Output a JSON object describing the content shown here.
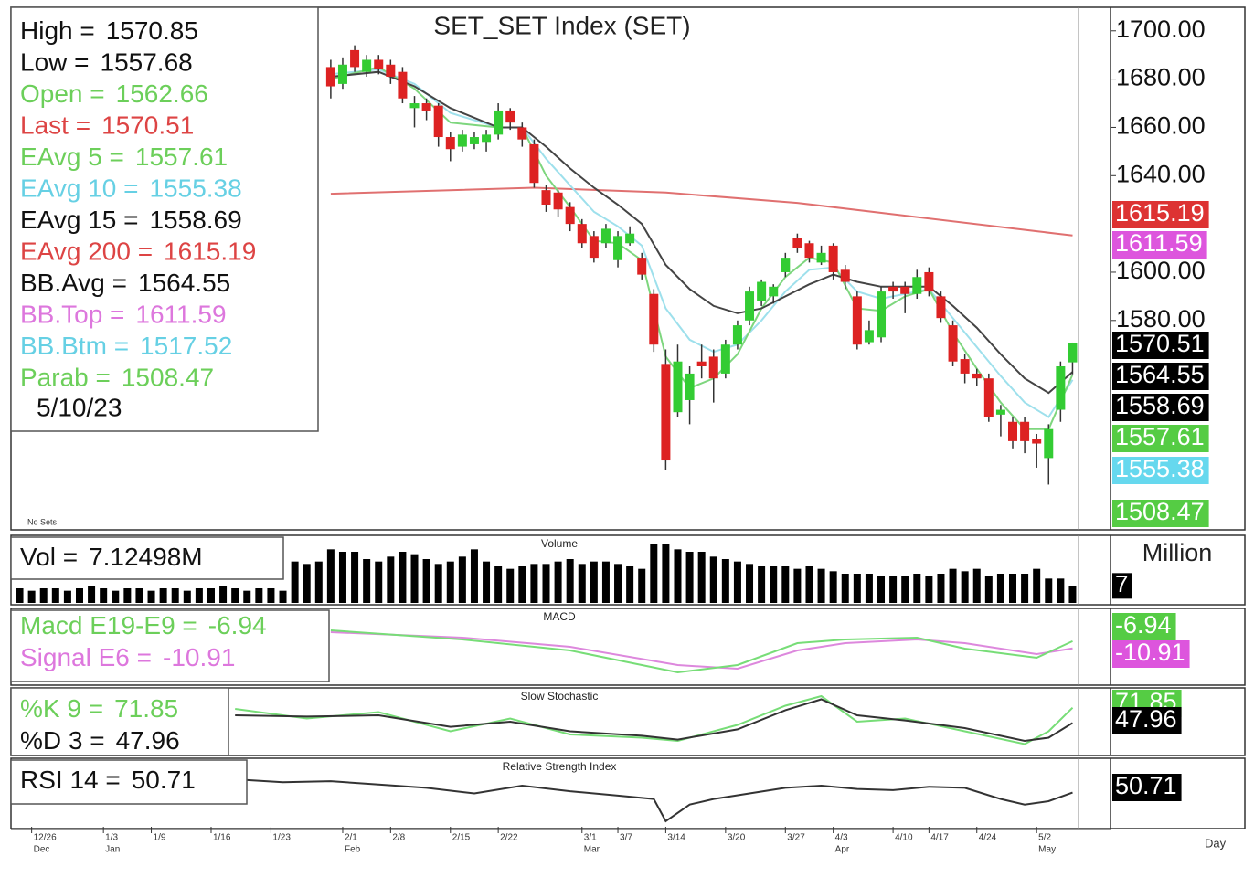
{
  "chart_data": [
    {
      "type": "candlestick",
      "title": "SET_SET Index (SET)",
      "note": "No Sets",
      "date": "5/10/23",
      "x_label": "Day",
      "up_color": "#33cc33",
      "down_color": "#dd2222",
      "xlim": [
        -0.5,
        88.5
      ],
      "xticks": [
        {
          "value": 1,
          "label": "12/26"
        },
        {
          "value": 7,
          "label": "1/3"
        },
        {
          "value": 11,
          "label": "1/9"
        },
        {
          "value": 16,
          "label": "1/16"
        },
        {
          "value": 21,
          "label": "1/23"
        },
        {
          "value": 27,
          "label": "2/1"
        },
        {
          "value": 31,
          "label": "2/8"
        },
        {
          "value": 36,
          "label": "2/15"
        },
        {
          "value": 40,
          "label": "2/22"
        },
        {
          "value": 47,
          "label": "3/1"
        },
        {
          "value": 50,
          "label": "3/7"
        },
        {
          "value": 54,
          "label": "3/14"
        },
        {
          "value": 59,
          "label": "3/20"
        },
        {
          "value": 64,
          "label": "3/27"
        },
        {
          "value": 68,
          "label": "4/3"
        },
        {
          "value": 73,
          "label": "4/10"
        },
        {
          "value": 76,
          "label": "4/17"
        },
        {
          "value": 80,
          "label": "4/24"
        },
        {
          "value": 85,
          "label": "5/2"
        }
      ],
      "month_ticks": [
        {
          "value": 1,
          "label": "Dec"
        },
        {
          "value": 7,
          "label": "Jan"
        },
        {
          "value": 27,
          "label": "Feb"
        },
        {
          "value": 47,
          "label": "Mar"
        },
        {
          "value": 68,
          "label": "Apr"
        },
        {
          "value": 85,
          "label": "May"
        }
      ],
      "ylim": [
        1494,
        1709
      ],
      "yticks": [
        {
          "value": 1580,
          "label": "1580.00"
        },
        {
          "value": 1600,
          "label": "1600.00"
        },
        {
          "value": 1640,
          "label": "1640.00"
        },
        {
          "value": 1660,
          "label": "1660.00"
        },
        {
          "value": 1680,
          "label": "1680.00"
        },
        {
          "value": 1700,
          "label": "1700.00"
        }
      ],
      "x": [
        26,
        27,
        28,
        29,
        30,
        31,
        32,
        33,
        34,
        35,
        36,
        37,
        38,
        39,
        40,
        41,
        42,
        43,
        44,
        45,
        46,
        47,
        48,
        49,
        50,
        51,
        52,
        53,
        54,
        55,
        56,
        57,
        58,
        59,
        60,
        61,
        62,
        63,
        64,
        65,
        66,
        67,
        68,
        69,
        70,
        71,
        72,
        73,
        74,
        75,
        76,
        77,
        78,
        79,
        80,
        81,
        82,
        83,
        84,
        85,
        86,
        87,
        88
      ],
      "open": [
        1685,
        1678,
        1692,
        1683,
        1688,
        1686,
        1683,
        1668,
        1670,
        1669,
        1656,
        1652,
        1653,
        1654,
        1657,
        1667,
        1660,
        1653,
        1634,
        1633,
        1627,
        1620,
        1615,
        1612,
        1605,
        1612,
        1606,
        1591,
        1562,
        1542,
        1547,
        1563,
        1565,
        1558,
        1570,
        1580,
        1588,
        1590,
        1600,
        1614,
        1612,
        1604,
        1611,
        1601,
        1590,
        1571,
        1573,
        1594,
        1594,
        1591,
        1600,
        1590,
        1578,
        1564,
        1558,
        1556,
        1541,
        1538,
        1538,
        1531,
        1523,
        1543,
        1562.66
      ],
      "high": [
        1688,
        1689,
        1694,
        1690,
        1690,
        1688,
        1685,
        1673,
        1672,
        1670,
        1658,
        1659,
        1658,
        1659,
        1670,
        1668,
        1662,
        1655,
        1636,
        1634,
        1629,
        1622,
        1617,
        1620,
        1617,
        1619,
        1608,
        1593,
        1568,
        1570,
        1561,
        1570,
        1568,
        1572,
        1580,
        1594,
        1597,
        1595,
        1608,
        1616,
        1613,
        1611,
        1612,
        1603,
        1592,
        1580,
        1594,
        1596,
        1596,
        1601,
        1602,
        1592,
        1580,
        1566,
        1560,
        1558,
        1545,
        1540,
        1540,
        1533,
        1537,
        1563,
        1570.85
      ],
      "low": [
        1672,
        1676,
        1683,
        1681,
        1682,
        1678,
        1670,
        1660,
        1663,
        1652,
        1646,
        1650,
        1651,
        1650,
        1655,
        1659,
        1652,
        1635,
        1625,
        1623,
        1617,
        1610,
        1604,
        1610,
        1602,
        1611,
        1597,
        1567,
        1518,
        1540,
        1537,
        1556,
        1546,
        1556,
        1568,
        1578,
        1586,
        1587,
        1598,
        1608,
        1604,
        1603,
        1597,
        1593,
        1568,
        1570,
        1571,
        1589,
        1583,
        1589,
        1590,
        1579,
        1561,
        1554,
        1553,
        1538,
        1532,
        1527,
        1525,
        1519,
        1512,
        1538,
        1557.68
      ],
      "close": [
        1677,
        1686,
        1685,
        1688,
        1684,
        1681,
        1672,
        1670,
        1667,
        1656,
        1651,
        1657,
        1656,
        1657,
        1667,
        1662,
        1655,
        1637,
        1628,
        1626,
        1620,
        1612,
        1606,
        1618,
        1615,
        1616,
        1599,
        1570,
        1522,
        1563,
        1558,
        1561,
        1556,
        1570,
        1578,
        1592,
        1596,
        1594,
        1606,
        1610,
        1606,
        1608,
        1600,
        1596,
        1570,
        1576,
        1592,
        1592,
        1591,
        1598,
        1592,
        1581,
        1563,
        1558,
        1556,
        1540,
        1543,
        1530,
        1530,
        1529,
        1535,
        1561,
        1570.51
      ],
      "series": [
        {
          "color": "#e07070",
          "x": [
            26,
            43,
            54,
            65,
            88
          ],
          "values": [
            1632.5,
            1635,
            1633,
            1628.7,
            1615.19
          ]
        },
        {
          "color": "#9ee0ec",
          "x": [
            26,
            30,
            33,
            36,
            40,
            42,
            44,
            46,
            48,
            50,
            52,
            54,
            56,
            58,
            60,
            62,
            64,
            66,
            68,
            70,
            72,
            74,
            76,
            78,
            80,
            82,
            84,
            86,
            88
          ],
          "values": [
            1682,
            1684,
            1678,
            1666,
            1660,
            1660,
            1647,
            1636,
            1625,
            1619,
            1611,
            1585,
            1572,
            1567,
            1570,
            1580,
            1592,
            1601,
            1602,
            1592,
            1589,
            1591,
            1593,
            1581,
            1569,
            1557,
            1546,
            1540,
            1555.38
          ]
        },
        {
          "color": "#7ed67e",
          "x": [
            26,
            30,
            33,
            36,
            40,
            42,
            44,
            46,
            48,
            50,
            52,
            54,
            56,
            58,
            60,
            62,
            64,
            66,
            68,
            70,
            72,
            74,
            76,
            78,
            80,
            82,
            84,
            86,
            88
          ],
          "values": [
            1680,
            1685,
            1676,
            1662,
            1660,
            1660,
            1640,
            1627,
            1613,
            1612,
            1605,
            1565,
            1552,
            1556,
            1566,
            1585,
            1598,
            1606,
            1604,
            1585,
            1584,
            1590,
            1593,
            1575,
            1560,
            1546,
            1535,
            1535,
            1557.61
          ]
        },
        {
          "color": "#444444",
          "x": [
            26,
            30,
            33,
            36,
            40,
            42,
            44,
            46,
            48,
            50,
            52,
            54,
            56,
            58,
            60,
            62,
            64,
            66,
            68,
            70,
            72,
            74,
            76,
            78,
            80,
            82,
            84,
            86,
            88
          ],
          "values": [
            1681,
            1683,
            1677,
            1668,
            1660,
            1660,
            1652,
            1643,
            1635,
            1628,
            1620,
            1603,
            1593,
            1586,
            1583,
            1585,
            1590,
            1595,
            1599,
            1596,
            1594,
            1594,
            1594,
            1586,
            1577,
            1566,
            1556,
            1550,
            1558.69
          ]
        }
      ],
      "info": [
        {
          "label": "High =",
          "value": 1570.85,
          "color": "#111111"
        },
        {
          "label": "Low =",
          "value": 1557.68,
          "color": "#111111"
        },
        {
          "label": "Open =",
          "value": 1562.66,
          "color": "#6ccf5a"
        },
        {
          "label": "Last =",
          "value": 1570.51,
          "color": "#dd4444",
          "flag_color": "#000000"
        },
        {
          "label": "EAvg 5 =",
          "value": 1557.61,
          "color": "#6ccf5a",
          "flag_color": "#55cc44"
        },
        {
          "label": "EAvg 10 =",
          "value": 1555.38,
          "color": "#66d0e4",
          "flag_color": "#66d8ee"
        },
        {
          "label": "EAvg 15 =",
          "value": 1558.69,
          "color": "#111111",
          "flag_color": "#000000"
        },
        {
          "label": "EAvg 200 =",
          "value": 1615.19,
          "color": "#dd4444",
          "flag_color": "#dd3333"
        },
        {
          "label": "BB.Avg =",
          "value": 1564.55,
          "color": "#111111",
          "flag_color": "#000000"
        },
        {
          "label": "BB.Top =",
          "value": 1611.59,
          "color": "#dd77dd",
          "flag_color": "#dd55dd"
        },
        {
          "label": "BB.Btm =",
          "value": 1517.52,
          "color": "#66d0e4"
        },
        {
          "label": "Parab =",
          "value": 1508.47,
          "color": "#6ccf5a",
          "flag_color": "#55cc44"
        }
      ]
    },
    {
      "type": "bar",
      "title": "Volume",
      "y_label": "Million",
      "color": "#000000",
      "xlim": [
        -0.5,
        88.5
      ],
      "ylim": [
        0,
        27
      ],
      "yticks": [
        7
      ],
      "x": [
        0,
        1,
        2,
        3,
        4,
        5,
        6,
        7,
        8,
        9,
        10,
        11,
        12,
        13,
        14,
        15,
        16,
        17,
        18,
        19,
        20,
        21,
        22,
        23,
        24,
        25,
        26,
        27,
        28,
        29,
        30,
        31,
        32,
        33,
        34,
        35,
        36,
        37,
        38,
        39,
        40,
        41,
        42,
        43,
        44,
        45,
        46,
        47,
        48,
        49,
        50,
        51,
        52,
        53,
        54,
        55,
        56,
        57,
        58,
        59,
        60,
        61,
        62,
        63,
        64,
        65,
        66,
        67,
        68,
        69,
        70,
        71,
        72,
        73,
        74,
        75,
        76,
        77,
        78,
        79,
        80,
        81,
        82,
        83,
        84,
        85,
        86,
        87,
        88
      ],
      "values": [
        6,
        5,
        6,
        6,
        5,
        6,
        7,
        6,
        5,
        6,
        6,
        5,
        6,
        6,
        5,
        6,
        6,
        7,
        6,
        5,
        6,
        6,
        5,
        17,
        16,
        17,
        22,
        21,
        21,
        18,
        17,
        19,
        21,
        20,
        18,
        16,
        17,
        19,
        22,
        17,
        15,
        14,
        15,
        16,
        16,
        17,
        18,
        16,
        17,
        17,
        16,
        15,
        14,
        24,
        24,
        22,
        21,
        21,
        19,
        18,
        17,
        16,
        15,
        15,
        15,
        14,
        15,
        14,
        13,
        12,
        12,
        12,
        11,
        11,
        11,
        12,
        11,
        12,
        14,
        13,
        14,
        11,
        12,
        12,
        12,
        14,
        10,
        10,
        7.12498
      ],
      "info": [
        {
          "label": "Vol =",
          "value": 7.12498,
          "value_label": "7.12498M",
          "color": "#111111"
        }
      ]
    },
    {
      "type": "line",
      "title": "MACD",
      "xlim": [
        -0.5,
        88.5
      ],
      "ylim": [
        -30,
        10
      ],
      "series": [
        {
          "color": "#dd88dd",
          "x": [
            26,
            37,
            46,
            55,
            60,
            65,
            69,
            75,
            79,
            85,
            88
          ],
          "values": [
            -2,
            -5,
            -10,
            -20,
            -22,
            -12,
            -8,
            -6,
            -8,
            -14,
            -10.91
          ]
        },
        {
          "color": "#77dd77",
          "x": [
            26,
            37,
            46,
            55,
            60,
            65,
            69,
            75,
            79,
            85,
            88
          ],
          "values": [
            -1,
            -6,
            -12,
            -24,
            -20,
            -8,
            -6,
            -5,
            -11,
            -16,
            -6.94
          ]
        }
      ],
      "info": [
        {
          "label": "Macd E19-E9 =",
          "value": -6.94,
          "color": "#6ccf5a",
          "flag_color": "#55cc44"
        },
        {
          "label": "Signal E6 =",
          "value": -10.91,
          "color": "#dd77dd",
          "flag_color": "#dd55dd"
        }
      ]
    },
    {
      "type": "line",
      "title": "Slow Stochastic",
      "xlim": [
        -0.5,
        88.5
      ],
      "ylim": [
        0,
        100
      ],
      "series": [
        {
          "color": "#77dd77",
          "x": [
            18,
            24,
            30,
            36,
            41,
            46,
            52,
            55,
            60,
            64,
            67,
            70,
            74,
            79,
            84,
            86,
            88
          ],
          "values": [
            70,
            55,
            65,
            35,
            55,
            30,
            25,
            20,
            45,
            75,
            90,
            50,
            55,
            35,
            15,
            35,
            71.85
          ]
        },
        {
          "color": "#333333",
          "x": [
            18,
            24,
            30,
            36,
            41,
            46,
            52,
            55,
            60,
            64,
            67,
            70,
            74,
            79,
            84,
            86,
            88
          ],
          "values": [
            60,
            58,
            60,
            42,
            50,
            35,
            28,
            22,
            38,
            68,
            85,
            60,
            52,
            40,
            20,
            25,
            47.96
          ]
        }
      ],
      "info": [
        {
          "label": "%K 9 =",
          "value": 71.85,
          "color": "#6ccf5a",
          "flag_color": "#55cc44"
        },
        {
          "label": "%D 3 =",
          "value": 47.96,
          "color": "#111111",
          "flag_color": "#000000"
        }
      ]
    },
    {
      "type": "line",
      "title": "Relative Strength Index",
      "xlim": [
        -0.5,
        88.5
      ],
      "ylim": [
        20,
        80
      ],
      "series": [
        {
          "color": "#333333",
          "x": [
            19,
            22,
            26,
            30,
            34,
            38,
            42,
            46,
            50,
            53,
            54,
            56,
            58,
            61,
            64,
            67,
            70,
            73,
            76,
            79,
            82,
            84,
            86,
            88
          ],
          "values": [
            62,
            60,
            61,
            58,
            55,
            50,
            57,
            52,
            48,
            45,
            25,
            40,
            45,
            50,
            55,
            57,
            54,
            53,
            56,
            55,
            45,
            40,
            43,
            50.71
          ]
        }
      ],
      "info": [
        {
          "label": "RSI 14 =",
          "value": 50.71,
          "color": "#111111",
          "flag_color": "#000000"
        }
      ]
    }
  ]
}
